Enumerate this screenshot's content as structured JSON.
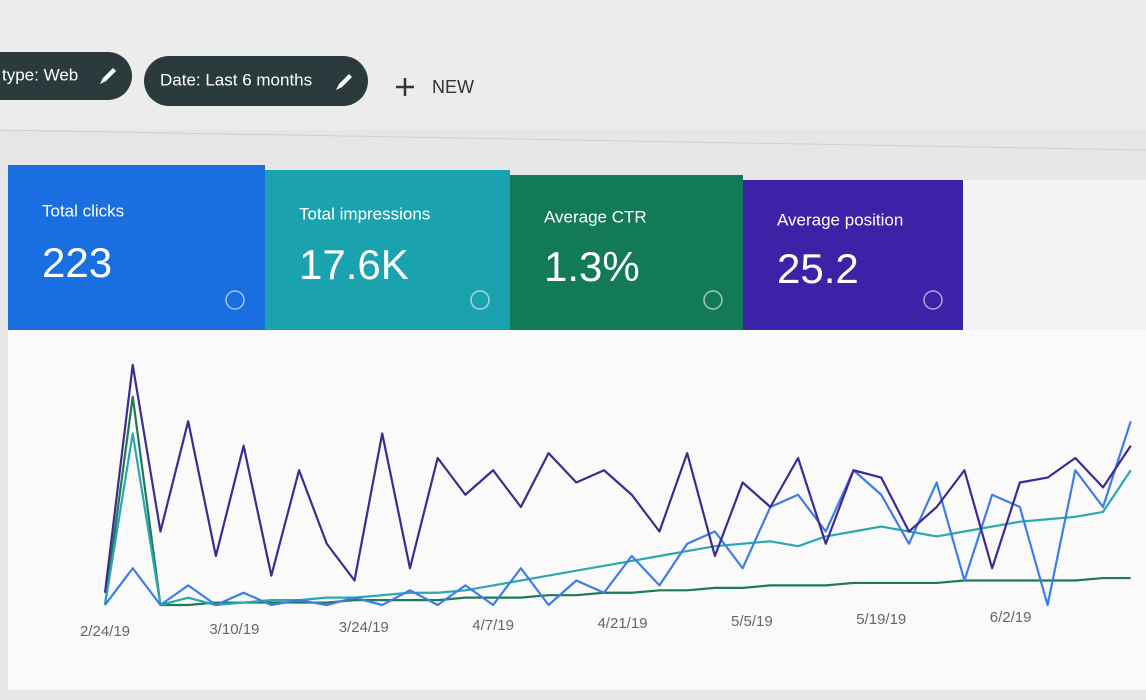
{
  "filters": [
    {
      "label": "type: Web"
    },
    {
      "label": "Date: Last 6 months"
    }
  ],
  "new_button": "NEW",
  "metrics": [
    {
      "label": "Total clicks",
      "value": "223",
      "color": "#1a6fe0"
    },
    {
      "label": "Total impressions",
      "value": "17.6K",
      "color": "#1aa3ae"
    },
    {
      "label": "Average CTR",
      "value": "1.3%",
      "color": "#137a57"
    },
    {
      "label": "Average position",
      "value": "25.2",
      "color": "#3b22a6"
    }
  ],
  "chart_data": {
    "type": "line",
    "x": [
      0,
      3,
      6,
      9,
      12,
      15,
      18,
      21,
      24,
      27,
      30,
      33,
      36,
      39,
      42,
      45,
      48,
      51,
      54,
      57,
      60,
      63,
      66,
      69,
      72,
      75,
      78,
      81,
      84,
      87,
      90,
      93,
      96,
      99,
      102,
      105,
      108,
      111
    ],
    "xlim": [
      0,
      112
    ],
    "xticks": [
      {
        "value": 0,
        "label": "2/24/19"
      },
      {
        "value": 14,
        "label": "3/10/19"
      },
      {
        "value": 28,
        "label": "3/24/19"
      },
      {
        "value": 42,
        "label": "4/7/19"
      },
      {
        "value": 56,
        "label": "4/21/19"
      },
      {
        "value": 70,
        "label": "5/5/19"
      },
      {
        "value": 84,
        "label": "5/19/19"
      },
      {
        "value": 98,
        "label": "6/2/19"
      }
    ],
    "ylim": [
      0,
      100
    ],
    "series": [
      {
        "color": "#1e7a55",
        "values": [
          0,
          85,
          0,
          0,
          1,
          1,
          1,
          1,
          1,
          2,
          2,
          2,
          2,
          3,
          3,
          3,
          4,
          4,
          5,
          5,
          6,
          6,
          7,
          7,
          8,
          8,
          8,
          9,
          9,
          9,
          9,
          10,
          10,
          10,
          10,
          10,
          11,
          11
        ]
      },
      {
        "color": "#2aa8b0",
        "values": [
          0,
          70,
          0,
          3,
          0,
          1,
          2,
          2,
          3,
          3,
          4,
          5,
          5,
          6,
          8,
          10,
          12,
          14,
          16,
          18,
          20,
          22,
          24,
          25,
          26,
          24,
          28,
          30,
          32,
          30,
          28,
          30,
          32,
          34,
          35,
          36,
          38,
          55
        ]
      },
      {
        "color": "#3d7ee6",
        "values": [
          0,
          15,
          0,
          8,
          0,
          5,
          0,
          2,
          0,
          3,
          0,
          6,
          0,
          8,
          0,
          15,
          0,
          10,
          5,
          20,
          8,
          25,
          30,
          15,
          40,
          45,
          30,
          55,
          45,
          25,
          50,
          10,
          45,
          40,
          0,
          55,
          40,
          75
        ]
      },
      {
        "color": "#3f2a8f",
        "values": [
          5,
          98,
          30,
          75,
          20,
          65,
          12,
          55,
          25,
          10,
          70,
          15,
          60,
          45,
          55,
          40,
          62,
          50,
          55,
          45,
          30,
          62,
          20,
          50,
          40,
          60,
          25,
          55,
          52,
          30,
          40,
          55,
          15,
          50,
          52,
          60,
          48,
          65
        ]
      }
    ]
  }
}
